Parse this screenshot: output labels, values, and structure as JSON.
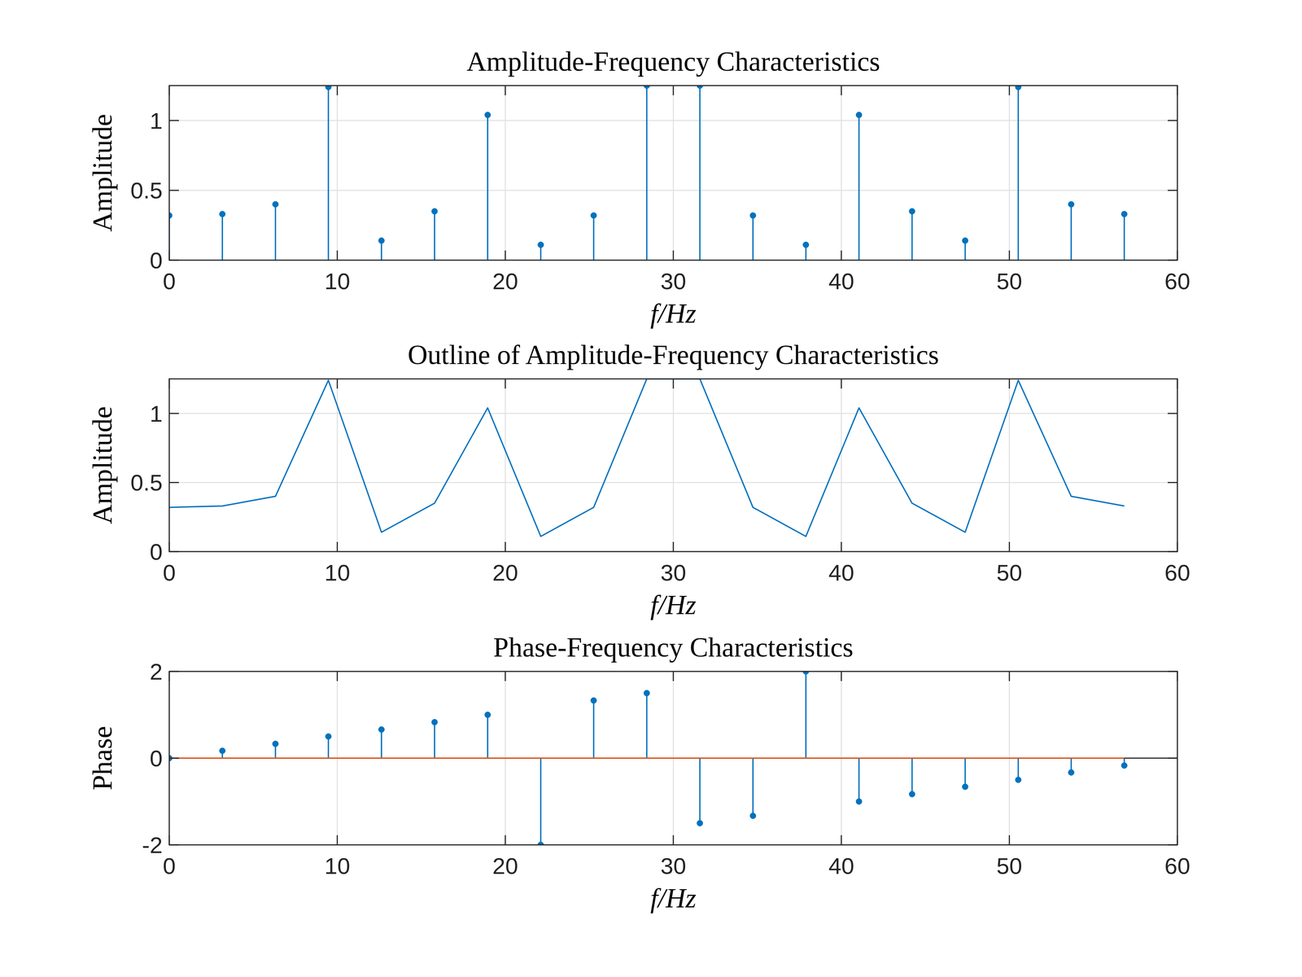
{
  "chart_data": [
    {
      "type": "stem",
      "title": "Amplitude-Frequency Characteristics",
      "x_label": "f/Hz",
      "y_label": "Amplitude",
      "x": [
        0,
        3.16,
        6.32,
        9.47,
        12.63,
        15.79,
        18.95,
        22.11,
        25.26,
        28.42,
        31.58,
        34.74,
        37.89,
        41.05,
        44.21,
        47.37,
        50.53,
        53.68,
        56.84
      ],
      "values": [
        0.32,
        0.33,
        0.4,
        1.24,
        0.14,
        0.35,
        1.04,
        0.11,
        0.32,
        1.25,
        1.25,
        0.32,
        0.11,
        1.04,
        0.35,
        0.14,
        1.24,
        0.4,
        0.33
      ],
      "color": "#0072bd",
      "marker": "o",
      "xlim": [
        0,
        60
      ],
      "xticks": [
        0,
        10,
        20,
        30,
        40,
        50,
        60
      ],
      "ylim": [
        0,
        1.25
      ],
      "yticks": [
        0,
        0.5,
        1
      ],
      "grid": true
    },
    {
      "type": "line",
      "title": "Outline of Amplitude-Frequency Characteristics",
      "x_label": "f/Hz",
      "y_label": "Amplitude",
      "x": [
        0,
        3.16,
        6.32,
        9.47,
        12.63,
        15.79,
        18.95,
        22.11,
        25.26,
        28.42,
        31.58,
        34.74,
        37.89,
        41.05,
        44.21,
        47.37,
        50.53,
        53.68,
        56.84
      ],
      "values": [
        0.32,
        0.33,
        0.4,
        1.24,
        0.14,
        0.35,
        1.04,
        0.11,
        0.32,
        1.25,
        1.25,
        0.32,
        0.11,
        1.04,
        0.35,
        0.14,
        1.24,
        0.4,
        0.33
      ],
      "color": "#0072bd",
      "xlim": [
        0,
        60
      ],
      "xticks": [
        0,
        10,
        20,
        30,
        40,
        50,
        60
      ],
      "ylim": [
        0,
        1.25
      ],
      "yticks": [
        0,
        0.5,
        1
      ],
      "grid": true
    },
    {
      "type": "stem",
      "title": "Phase-Frequency Characteristics",
      "x_label": "f/Hz",
      "y_label": "Phase",
      "x": [
        0,
        3.16,
        6.32,
        9.47,
        12.63,
        15.79,
        18.95,
        22.11,
        25.26,
        28.42,
        31.58,
        34.74,
        37.89,
        41.05,
        44.21,
        47.37,
        50.53,
        53.68,
        56.84
      ],
      "values": [
        0,
        0.17,
        0.33,
        0.5,
        0.66,
        0.83,
        1.0,
        -2.0,
        1.33,
        1.5,
        -1.5,
        -1.33,
        2.0,
        -1.0,
        -0.83,
        -0.66,
        -0.5,
        -0.33,
        -0.17
      ],
      "color": "#0072bd",
      "marker": "o",
      "xlim": [
        0,
        60
      ],
      "xticks": [
        0,
        10,
        20,
        30,
        40,
        50,
        60
      ],
      "ylim": [
        -2,
        2
      ],
      "yticks": [
        -2,
        0,
        2
      ],
      "grid": true
    }
  ]
}
